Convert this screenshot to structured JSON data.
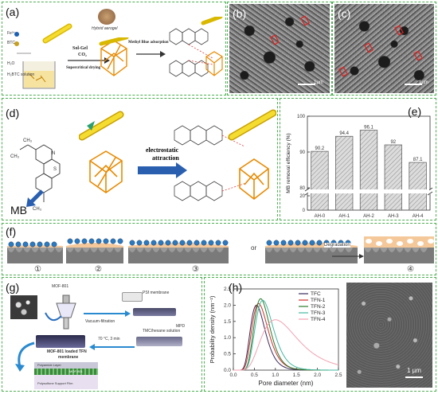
{
  "figure": {
    "panel_a": {
      "label": "(a)",
      "reagents": {
        "fe": "Fe³⁺",
        "btc": "BTC",
        "h2o": "H₂O",
        "naoh": "H₂BTC solution"
      },
      "step1": {
        "line1": "Sol-Gel",
        "line2": "CO₂",
        "line3": "Supercritical drying"
      },
      "aerogel_label": "Hybrid aerogel",
      "step2": "Methyl Blue adsorption"
    },
    "panel_b": {
      "label": "(b)",
      "scale": "1µm"
    },
    "panel_c": {
      "label": "(c)",
      "scale": "1µm"
    },
    "panel_d": {
      "label": "(d)",
      "mb_label": "MB",
      "arrow_line1": "electrostatic",
      "arrow_line2": "attraction"
    },
    "panel_e": {
      "label": "(e)",
      "ylabel": "MB removal efficiency (%)"
    },
    "panel_f": {
      "label": "(f)",
      "step_labels": [
        "①",
        "②",
        "③",
        "④"
      ],
      "or_text": "or",
      "degradation": "Degradation"
    },
    "panel_g": {
      "label": "(g)",
      "mof_label": "MOF-801",
      "psf_label": "PSf membrane",
      "vacuum": "Vacuum-filtration",
      "tmc": "TMC/hexane solution",
      "mpd": "MPD",
      "cure": "70 °C, 3 min",
      "product_line1": "MOF-801 loaded TFN",
      "product_line2": "membrane",
      "layer1": "Polyamide Layer",
      "layer2": "MOF-801",
      "layer3": "Polysulfone Support Film"
    },
    "panel_h": {
      "label": "(h)",
      "scale": "1 µm"
    }
  },
  "chart_data": [
    {
      "type": "bar",
      "categories": [
        "AH-0",
        "AH-1",
        "AH-2",
        "AH-3",
        "AH-4"
      ],
      "values": [
        90.2,
        94.4,
        96.1,
        92,
        87.1
      ],
      "value_labels": [
        "90.2",
        "94.4",
        "96.1",
        "92",
        "87.1"
      ],
      "ylabel": "MB removal efficiency (%)",
      "yticks": [
        "0",
        "20",
        "80",
        "90",
        "100"
      ],
      "axis_break": [
        25,
        78
      ],
      "ylim": [
        0,
        100
      ],
      "colors": {
        "bar": "#d8d8d8",
        "hatch": "#888888"
      }
    },
    {
      "type": "line",
      "xlabel": "Pore diameter (nm)",
      "ylabel": "Probability density (nm⁻¹)",
      "xlim": [
        0,
        2.5
      ],
      "ylim": [
        0,
        2.5
      ],
      "xticks": [
        "0.0",
        "0.5",
        "1.0",
        "1.5",
        "2.0",
        "2.5"
      ],
      "yticks": [
        "0.0",
        "0.5",
        "1.0",
        "1.5",
        "2.0",
        "2.5"
      ],
      "legend_position": "top-right",
      "series": [
        {
          "name": "TFC",
          "color": "#3b2a5a",
          "mu": 0.55,
          "sigma": 0.2,
          "peak": 2.0
        },
        {
          "name": "TFN-1",
          "color": "#d0302a",
          "mu": 0.6,
          "sigma": 0.2,
          "peak": 2.05
        },
        {
          "name": "TFN-2",
          "color": "#2a7a2a",
          "mu": 0.65,
          "sigma": 0.18,
          "peak": 2.2
        },
        {
          "name": "TFN-3",
          "color": "#44b8a0",
          "mu": 0.7,
          "sigma": 0.19,
          "peak": 2.15
        },
        {
          "name": "TFN-4",
          "color": "#f2a0b0",
          "mu": 1.0,
          "sigma": 0.27,
          "peak": 1.55
        }
      ]
    }
  ]
}
